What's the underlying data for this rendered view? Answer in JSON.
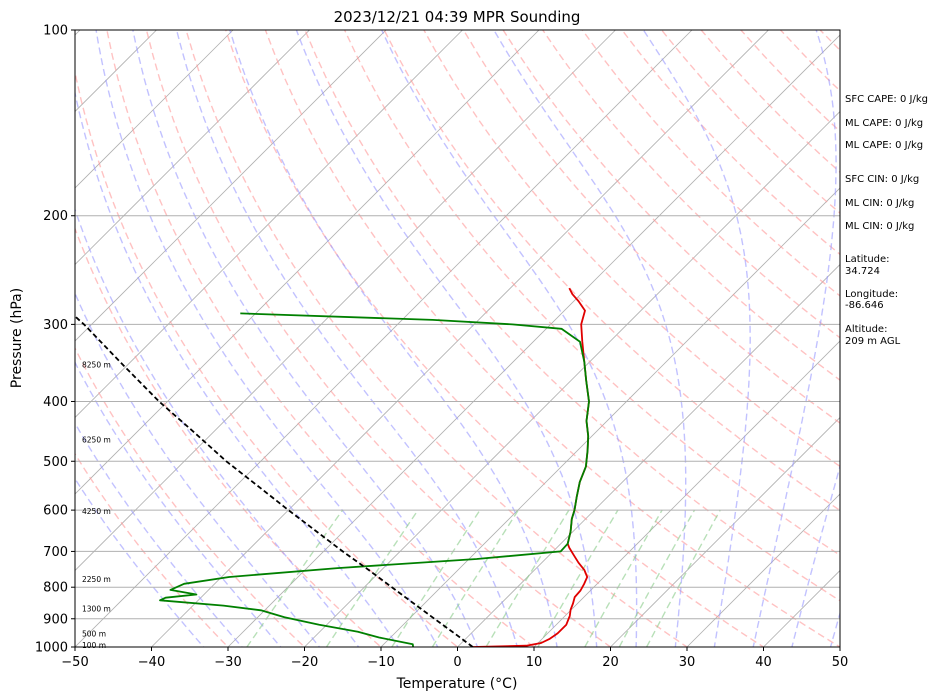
{
  "chart_data": {
    "type": "line",
    "subtype": "skew-t log-p sounding",
    "title": "2023/12/21 04:39 MPR Sounding",
    "xlabel": "Temperature (°C)",
    "ylabel": "Pressure (hPa)",
    "xlim": [
      -50,
      50
    ],
    "ylim": [
      1000,
      100
    ],
    "y_scale": "log",
    "x_ticks": [
      "−50",
      "−40",
      "−30",
      "−20",
      "−10",
      "0",
      "10",
      "20",
      "30",
      "40",
      "50"
    ],
    "y_ticks": [
      100,
      200,
      300,
      400,
      500,
      600,
      700,
      800,
      900,
      1000
    ],
    "grid": true,
    "series": [
      {
        "role": "temperature",
        "color": "#e00000",
        "style": "solid",
        "points": [
          [
            1000,
            2.0
          ],
          [
            995,
            8.8
          ],
          [
            985,
            10.4
          ],
          [
            970,
            11.0
          ],
          [
            950,
            11.3
          ],
          [
            920,
            11.3
          ],
          [
            890,
            10.6
          ],
          [
            870,
            9.9
          ],
          [
            850,
            9.4
          ],
          [
            830,
            8.8
          ],
          [
            810,
            8.7
          ],
          [
            790,
            8.3
          ],
          [
            770,
            7.8
          ],
          [
            750,
            6.5
          ],
          [
            730,
            4.8
          ],
          [
            710,
            3.2
          ],
          [
            690,
            1.6
          ],
          [
            680,
            0.9
          ],
          [
            650,
            -0.3
          ],
          [
            620,
            -1.8
          ],
          [
            600,
            -2.6
          ],
          [
            570,
            -4.1
          ],
          [
            540,
            -5.6
          ],
          [
            510,
            -6.8
          ],
          [
            480,
            -8.7
          ],
          [
            455,
            -10.5
          ],
          [
            430,
            -12.7
          ],
          [
            400,
            -14.9
          ],
          [
            370,
            -18.0
          ],
          [
            345,
            -20.7
          ],
          [
            320,
            -23.6
          ],
          [
            300,
            -26.0
          ],
          [
            285,
            -27.3
          ],
          [
            275,
            -29.4
          ],
          [
            268,
            -31.1
          ],
          [
            262,
            -32.3
          ]
        ]
      },
      {
        "role": "dewpoint",
        "color": "#008000",
        "style": "solid",
        "points": [
          [
            1000,
            -5.8
          ],
          [
            990,
            -6.2
          ],
          [
            965,
            -11.5
          ],
          [
            945,
            -15.0
          ],
          [
            920,
            -21.0
          ],
          [
            895,
            -26.5
          ],
          [
            872,
            -30.5
          ],
          [
            857,
            -36.0
          ],
          [
            840,
            -45.0
          ],
          [
            832,
            -44.6
          ],
          [
            822,
            -41.0
          ],
          [
            808,
            -45.0
          ],
          [
            790,
            -44.0
          ],
          [
            770,
            -39.0
          ],
          [
            745,
            -26.0
          ],
          [
            720,
            -9.0
          ],
          [
            700,
            1.0
          ],
          [
            680,
            0.9
          ],
          [
            650,
            -0.3
          ],
          [
            620,
            -1.8
          ],
          [
            600,
            -2.6
          ],
          [
            570,
            -4.1
          ],
          [
            540,
            -5.6
          ],
          [
            510,
            -6.8
          ],
          [
            480,
            -8.7
          ],
          [
            455,
            -10.5
          ],
          [
            430,
            -12.7
          ],
          [
            400,
            -14.9
          ],
          [
            370,
            -18.0
          ],
          [
            345,
            -20.7
          ],
          [
            320,
            -23.9
          ],
          [
            305,
            -28.0
          ],
          [
            300,
            -35.0
          ],
          [
            295,
            -46.0
          ],
          [
            288,
            -72.0
          ]
        ]
      },
      {
        "role": "parcel path",
        "color": "#000000",
        "style": "dashed",
        "points": [
          [
            1000,
            2.0
          ],
          [
            950,
            -2.2
          ],
          [
            900,
            -6.7
          ],
          [
            850,
            -11.4
          ],
          [
            800,
            -16.4
          ],
          [
            750,
            -21.7
          ],
          [
            700,
            -27.5
          ],
          [
            650,
            -33.5
          ],
          [
            600,
            -40.0
          ],
          [
            550,
            -46.9
          ],
          [
            500,
            -54.5
          ],
          [
            450,
            -62.3
          ],
          [
            400,
            -71.1
          ],
          [
            350,
            -80.4
          ],
          [
            300,
            -91.0
          ],
          [
            290,
            -93.5
          ]
        ]
      }
    ],
    "altitude_markers": [
      "100 m",
      "500 m",
      "1300 m",
      "2250 m",
      "4250 m",
      "6250 m",
      "8250 m"
    ],
    "background_lines": {
      "isotherms_color": "#b0b0b0",
      "dry_adiabats_color": "#ff9999",
      "moist_adiabats_color": "#9999ff",
      "mixing_ratio_color": "#88cc88"
    }
  },
  "side_panel": {
    "sfc_cape": "SFC CAPE: 0 J/kg",
    "ml_cape_1": "ML CAPE: 0 J/kg",
    "ml_cape_2": "ML CAPE: 0 J/kg",
    "sfc_cin": "SFC CIN: 0 J/kg",
    "ml_cin_1": "ML CIN: 0 J/kg",
    "ml_cin_2": "ML CIN: 0 J/kg",
    "latitude_label": "Latitude:",
    "latitude_value": "34.724",
    "longitude_label": "Longitude:",
    "longitude_value": "-86.646",
    "altitude_label": "Altitude:",
    "altitude_value": "209 m AGL"
  }
}
